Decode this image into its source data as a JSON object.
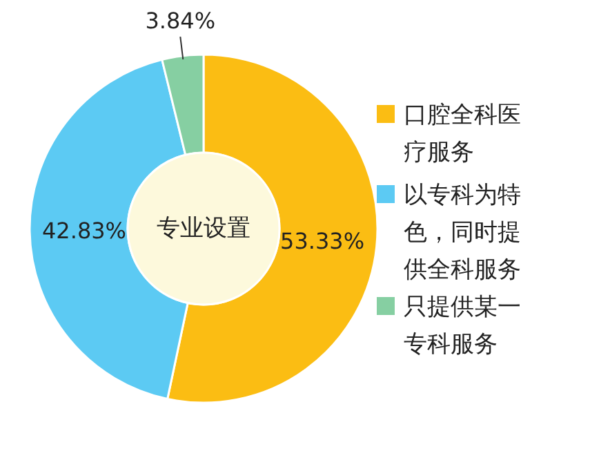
{
  "chart_data": {
    "type": "donut",
    "title": "专业设置",
    "categories": [
      "口腔全科医疗服务",
      "以专科为特色，同时提供全科服务",
      "只提供某一专科服务"
    ],
    "values": [
      53.33,
      42.83,
      3.84
    ],
    "colors": [
      "#fbbd13",
      "#5ccaf3",
      "#86cfa2"
    ],
    "value_labels": [
      "53.33%",
      "42.83%",
      "3.84%"
    ],
    "legend": "right"
  }
}
